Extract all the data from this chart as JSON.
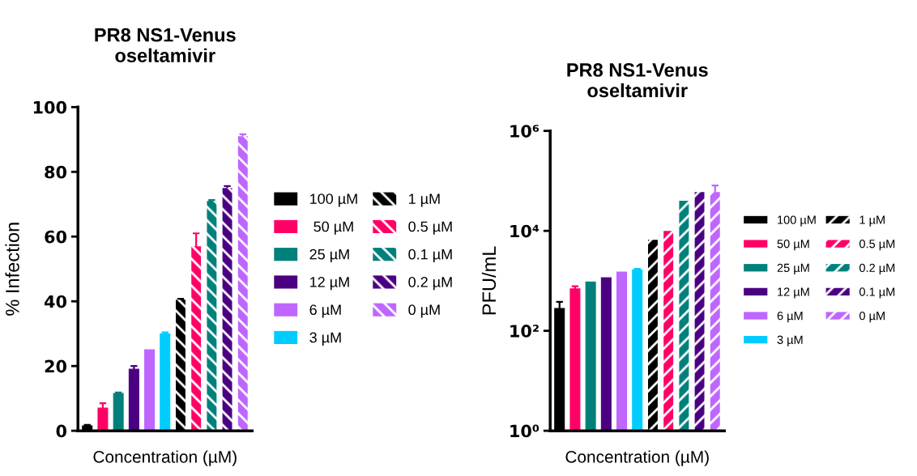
{
  "chart_data": [
    {
      "type": "bar",
      "title": "PR8 NS1-Venus\noseltamivir",
      "xlabel": "Concentration (µM)",
      "ylabel": "% Infection",
      "categories": [
        null,
        null,
        null,
        null,
        null,
        null,
        null,
        null,
        null,
        null,
        null
      ],
      "ylim": [
        0,
        100
      ],
      "yticks": [
        0,
        20,
        40,
        60,
        80,
        100
      ],
      "legend": "right",
      "grid": false,
      "series": [
        {
          "name": "100 µM",
          "color": "#000000",
          "values": [
            1.5,
            null,
            null,
            null,
            null,
            null,
            null,
            null,
            null,
            null,
            null
          ],
          "errors": [
            0.3,
            null,
            null,
            null,
            null,
            null,
            null,
            null,
            null,
            null,
            null
          ]
        },
        {
          "name": " 50 µM",
          "color": "#ff0066",
          "values": [
            null,
            7,
            null,
            null,
            null,
            null,
            null,
            null,
            null,
            null,
            null
          ],
          "errors": [
            null,
            1.5,
            null,
            null,
            null,
            null,
            null,
            null,
            null,
            null,
            null
          ]
        },
        {
          "name": "25 µM",
          "color": "#00807a",
          "values": [
            null,
            null,
            11.5,
            null,
            null,
            null,
            null,
            null,
            null,
            null,
            null
          ],
          "errors": [
            null,
            null,
            0.3,
            null,
            null,
            null,
            null,
            null,
            null,
            null,
            null
          ]
        },
        {
          "name": "12 µM",
          "color": "#4b0082",
          "values": [
            null,
            null,
            null,
            19,
            null,
            null,
            null,
            null,
            null,
            null,
            null
          ],
          "errors": [
            null,
            null,
            null,
            1,
            null,
            null,
            null,
            null,
            null,
            null,
            null
          ]
        },
        {
          "name": "6 µM",
          "color": "#bf66ff",
          "values": [
            null,
            null,
            null,
            null,
            25,
            null,
            null,
            null,
            null,
            null,
            null
          ]
        },
        {
          "name": "3 µM",
          "color": "#00ccff",
          "values": [
            null,
            null,
            null,
            null,
            null,
            30,
            null,
            null,
            null,
            null,
            null
          ],
          "errors": [
            null,
            null,
            null,
            null,
            null,
            0.4,
            null,
            null,
            null,
            null,
            null
          ]
        },
        {
          "name": "1 µM",
          "color": "#000000",
          "values": [
            null,
            null,
            null,
            null,
            null,
            null,
            40.5,
            null,
            null,
            null,
            null
          ],
          "errors": [
            null,
            null,
            null,
            null,
            null,
            null,
            0.3,
            null,
            null,
            null,
            null
          ]
        },
        {
          "name": "0.5 µM",
          "color": "#ff0066",
          "values": [
            null,
            null,
            null,
            null,
            null,
            null,
            null,
            57,
            null,
            null,
            null
          ],
          "errors": [
            null,
            null,
            null,
            null,
            null,
            null,
            null,
            4,
            null,
            null,
            null
          ]
        },
        {
          "name": "0.1 µM",
          "color": "#00807a",
          "values": [
            null,
            null,
            null,
            null,
            null,
            null,
            null,
            null,
            71,
            null,
            null
          ],
          "errors": [
            null,
            null,
            null,
            null,
            null,
            null,
            null,
            null,
            0.3,
            null,
            null
          ]
        },
        {
          "name": "0.2 µM",
          "color": "#4b0082",
          "values": [
            null,
            null,
            null,
            null,
            null,
            null,
            null,
            null,
            null,
            75,
            null
          ],
          "errors": [
            null,
            null,
            null,
            null,
            null,
            null,
            null,
            null,
            null,
            0.6,
            null
          ]
        },
        {
          "name": "0 µM",
          "color": "#bf66ff",
          "values": [
            null,
            null,
            null,
            null,
            null,
            null,
            null,
            null,
            null,
            null,
            91
          ],
          "errors": [
            null,
            null,
            null,
            null,
            null,
            null,
            null,
            null,
            null,
            null,
            0.6
          ]
        }
      ]
    },
    {
      "type": "bar",
      "title": "PR8 NS1-Venus\noseltamivir",
      "xlabel": "Concentration (µM)",
      "ylabel": "PFU/mL",
      "categories": [
        null,
        null,
        null,
        null,
        null,
        null,
        null,
        null,
        null,
        null,
        null
      ],
      "log": "y",
      "ylim": [
        1,
        1000000
      ],
      "yticks": [
        {
          "value": 1,
          "label": "10⁰"
        },
        {
          "value": 100,
          "label": "10²"
        },
        {
          "value": 10000,
          "label": "10⁴"
        },
        {
          "value": 1000000,
          "label": "10⁶"
        }
      ],
      "legend": "right",
      "grid": false,
      "series": [
        {
          "name": "100 µM",
          "color": "#000000",
          "values": [
            280,
            null,
            null,
            null,
            null,
            null,
            null,
            null,
            null,
            null,
            null
          ],
          "errors": [
            100,
            null,
            null,
            null,
            null,
            null,
            null,
            null,
            null,
            null,
            null
          ]
        },
        {
          "name": "50 µM",
          "color": "#ff0066",
          "values": [
            null,
            690,
            null,
            null,
            null,
            null,
            null,
            null,
            null,
            null,
            null
          ],
          "errors": [
            null,
            90,
            null,
            null,
            null,
            null,
            null,
            null,
            null,
            null,
            null
          ]
        },
        {
          "name": "25 µM",
          "color": "#00807a",
          "values": [
            null,
            null,
            950,
            null,
            null,
            null,
            null,
            null,
            null,
            null,
            null
          ]
        },
        {
          "name": "12 µM",
          "color": "#4b0082",
          "values": [
            null,
            null,
            null,
            1150,
            null,
            null,
            null,
            null,
            null,
            null,
            null
          ]
        },
        {
          "name": "6 µM",
          "color": "#bf66ff",
          "values": [
            null,
            null,
            null,
            null,
            1500,
            null,
            null,
            null,
            null,
            null,
            null
          ]
        },
        {
          "name": "3 µM",
          "color": "#00ccff",
          "values": [
            null,
            null,
            null,
            null,
            null,
            1660,
            null,
            null,
            null,
            null,
            null
          ],
          "errors": [
            null,
            null,
            null,
            null,
            null,
            80,
            null,
            null,
            null,
            null,
            null
          ]
        },
        {
          "name": "1 µM",
          "color": "#000000",
          "values": [
            null,
            null,
            null,
            null,
            null,
            null,
            6600,
            null,
            null,
            null,
            null
          ]
        },
        {
          "name": "0.5 µM",
          "color": "#ff0066",
          "values": [
            null,
            null,
            null,
            null,
            null,
            null,
            null,
            10000,
            null,
            null,
            null
          ]
        },
        {
          "name": "0.2 µM",
          "color": "#00807a",
          "values": [
            null,
            null,
            null,
            null,
            null,
            null,
            null,
            null,
            40000,
            null,
            null
          ]
        },
        {
          "name": "0.1 µM",
          "color": "#4b0082",
          "values": [
            null,
            null,
            null,
            null,
            null,
            null,
            null,
            null,
            null,
            60000,
            null
          ]
        },
        {
          "name": "0 µM",
          "color": "#bf66ff",
          "values": [
            null,
            null,
            null,
            null,
            null,
            null,
            null,
            null,
            null,
            null,
            60000
          ],
          "errors": [
            null,
            null,
            null,
            null,
            null,
            null,
            null,
            null,
            null,
            null,
            21000
          ]
        }
      ]
    }
  ]
}
